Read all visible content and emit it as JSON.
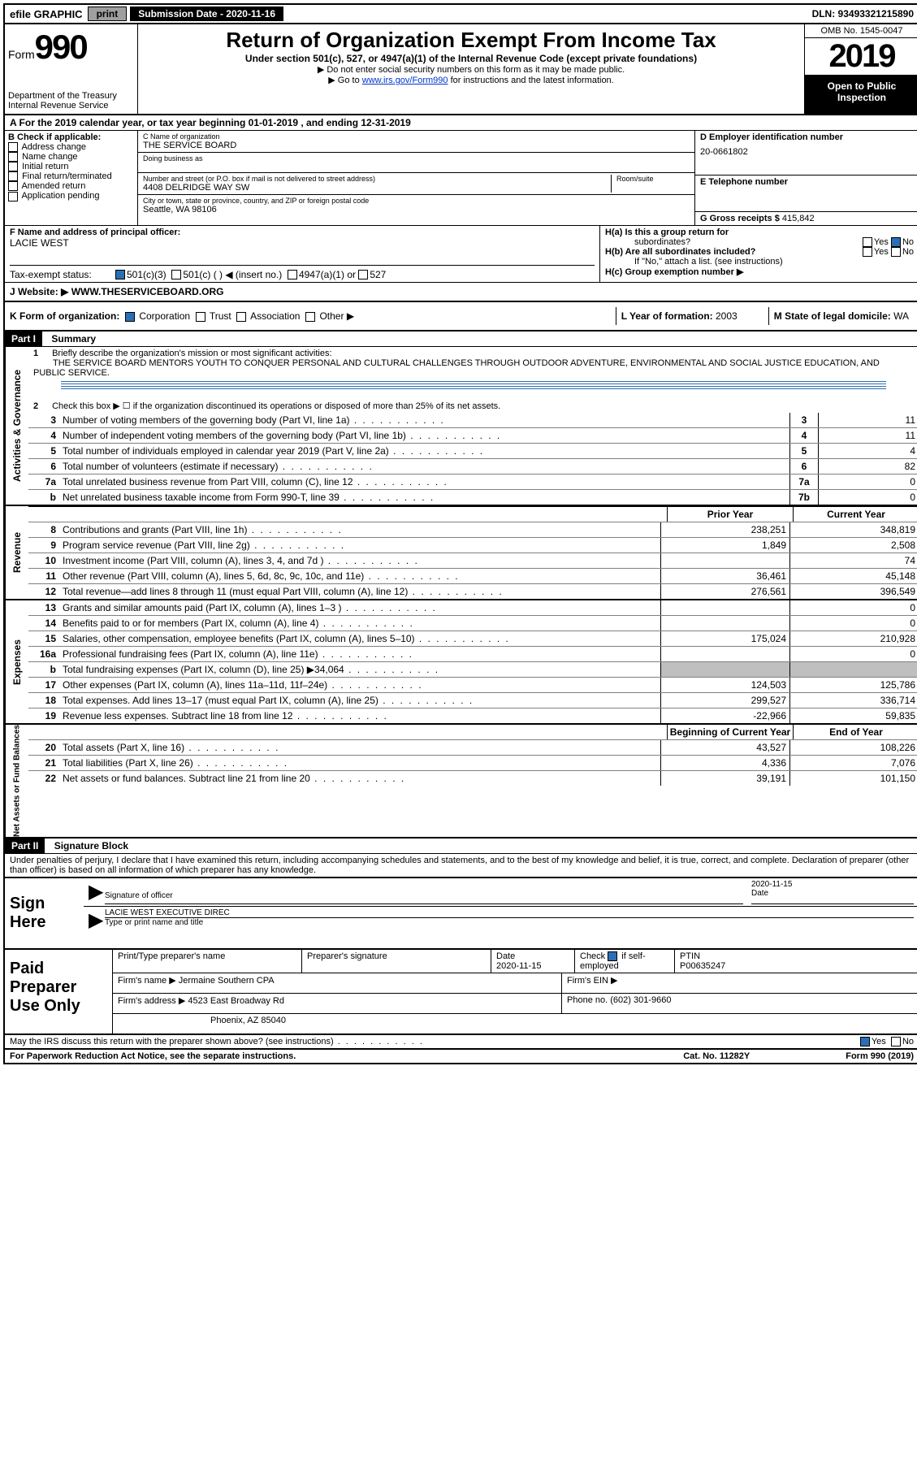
{
  "topbar": {
    "efile": "efile GRAPHIC",
    "print": "print",
    "submission": "Submission Date - 2020-11-16",
    "dln": "DLN: 93493321215890"
  },
  "header": {
    "form_label": "Form",
    "form_num": "990",
    "dept1": "Department of the Treasury",
    "dept2": "Internal Revenue Service",
    "title": "Return of Organization Exempt From Income Tax",
    "subtitle": "Under section 501(c), 527, or 4947(a)(1) of the Internal Revenue Code (except private foundations)",
    "note1": "▶ Do not enter social security numbers on this form as it may be made public.",
    "note2_pre": "▶ Go to ",
    "note2_link": "www.irs.gov/Form990",
    "note2_post": " for instructions and the latest information.",
    "omb": "OMB No. 1545-0047",
    "year": "2019",
    "open_public": "Open to Public Inspection"
  },
  "A": {
    "text": "A For the 2019 calendar year, or tax year beginning 01-01-2019    , and ending 12-31-2019"
  },
  "B": {
    "label": "B Check if applicable:",
    "items": [
      "Address change",
      "Name change",
      "Initial return",
      "Final return/terminated",
      "Amended return",
      "Application pending"
    ]
  },
  "C": {
    "name_label": "C Name of organization",
    "name": "THE SERVICE BOARD",
    "dba_label": "Doing business as",
    "addr_label": "Number and street (or P.O. box if mail is not delivered to street address)",
    "room_label": "Room/suite",
    "addr": "4408 DELRIDGE WAY SW",
    "city_label": "City or town, state or province, country, and ZIP or foreign postal code",
    "city": "Seattle, WA  98106"
  },
  "D": {
    "label": "D Employer identification number",
    "ein": "20-0661802"
  },
  "E": {
    "label": "E Telephone number"
  },
  "G": {
    "label": "G Gross receipts $",
    "val": "415,842"
  },
  "F": {
    "label": "F  Name and address of principal officer:",
    "name": "LACIE WEST"
  },
  "H": {
    "a_label": "H(a)  Is this a group return for",
    "a_sub": "subordinates?",
    "b_label": "H(b)  Are all subordinates included?",
    "b_note": "If \"No,\" attach a list. (see instructions)",
    "c_label": "H(c)  Group exemption number ▶",
    "yes": "Yes",
    "no": "No"
  },
  "I": {
    "label": "Tax-exempt status:",
    "opt1": "501(c)(3)",
    "opt2": "501(c) (   ) ◀ (insert no.)",
    "opt3": "4947(a)(1) or",
    "opt4": "527"
  },
  "J": {
    "label": "J    Website: ▶",
    "val": "WWW.THESERVICEBOARD.ORG"
  },
  "K": {
    "label": "K Form of organization:",
    "corp": "Corporation",
    "trust": "Trust",
    "assoc": "Association",
    "other": "Other ▶"
  },
  "L": {
    "label": "L Year of formation:",
    "val": "2003"
  },
  "M": {
    "label": "M State of legal domicile:",
    "val": "WA"
  },
  "partI": {
    "header": "Part I",
    "title": "Summary"
  },
  "line1": {
    "num": "1",
    "label": "Briefly describe the organization's mission or most significant activities:",
    "text": "THE SERVICE BOARD MENTORS YOUTH TO CONQUER PERSONAL AND CULTURAL CHALLENGES THROUGH OUTDOOR ADVENTURE, ENVIRONMENTAL AND SOCIAL JUSTICE EDUCATION, AND PUBLIC SERVICE."
  },
  "line2": {
    "num": "2",
    "label": "Check this box ▶ ☐ if the organization discontinued its operations or disposed of more than 25% of its net assets."
  },
  "sidebar": {
    "activities": "Activities & Governance",
    "revenue": "Revenue",
    "expenses": "Expenses",
    "netassets": "Net Assets or Fund Balances"
  },
  "cols": {
    "prior": "Prior Year",
    "current": "Current Year",
    "begin": "Beginning of Current Year",
    "end": "End of Year"
  },
  "lines_gov": [
    {
      "num": "3",
      "label": "Number of voting members of the governing body (Part VI, line 1a)",
      "box": "3",
      "v": "11"
    },
    {
      "num": "4",
      "label": "Number of independent voting members of the governing body (Part VI, line 1b)",
      "box": "4",
      "v": "11"
    },
    {
      "num": "5",
      "label": "Total number of individuals employed in calendar year 2019 (Part V, line 2a)",
      "box": "5",
      "v": "4"
    },
    {
      "num": "6",
      "label": "Total number of volunteers (estimate if necessary)",
      "box": "6",
      "v": "82"
    },
    {
      "num": "7a",
      "label": "Total unrelated business revenue from Part VIII, column (C), line 12",
      "box": "7a",
      "v": "0"
    },
    {
      "num": "b",
      "label": "Net unrelated business taxable income from Form 990-T, line 39",
      "box": "7b",
      "v": "0"
    }
  ],
  "lines_rev": [
    {
      "num": "8",
      "label": "Contributions and grants (Part VIII, line 1h)",
      "p": "238,251",
      "c": "348,819"
    },
    {
      "num": "9",
      "label": "Program service revenue (Part VIII, line 2g)",
      "p": "1,849",
      "c": "2,508"
    },
    {
      "num": "10",
      "label": "Investment income (Part VIII, column (A), lines 3, 4, and 7d )",
      "p": "",
      "c": "74"
    },
    {
      "num": "11",
      "label": "Other revenue (Part VIII, column (A), lines 5, 6d, 8c, 9c, 10c, and 11e)",
      "p": "36,461",
      "c": "45,148"
    },
    {
      "num": "12",
      "label": "Total revenue—add lines 8 through 11 (must equal Part VIII, column (A), line 12)",
      "p": "276,561",
      "c": "396,549"
    }
  ],
  "lines_exp": [
    {
      "num": "13",
      "label": "Grants and similar amounts paid (Part IX, column (A), lines 1–3 )",
      "p": "",
      "c": "0"
    },
    {
      "num": "14",
      "label": "Benefits paid to or for members (Part IX, column (A), line 4)",
      "p": "",
      "c": "0"
    },
    {
      "num": "15",
      "label": "Salaries, other compensation, employee benefits (Part IX, column (A), lines 5–10)",
      "p": "175,024",
      "c": "210,928"
    },
    {
      "num": "16a",
      "label": "Professional fundraising fees (Part IX, column (A), line 11e)",
      "p": "",
      "c": "0"
    },
    {
      "num": "b",
      "label": "Total fundraising expenses (Part IX, column (D), line 25) ▶34,064",
      "p": "grey",
      "c": "grey"
    },
    {
      "num": "17",
      "label": "Other expenses (Part IX, column (A), lines 11a–11d, 11f–24e)",
      "p": "124,503",
      "c": "125,786"
    },
    {
      "num": "18",
      "label": "Total expenses. Add lines 13–17 (must equal Part IX, column (A), line 25)",
      "p": "299,527",
      "c": "336,714"
    },
    {
      "num": "19",
      "label": "Revenue less expenses. Subtract line 18 from line 12",
      "p": "-22,966",
      "c": "59,835"
    }
  ],
  "lines_net": [
    {
      "num": "20",
      "label": "Total assets (Part X, line 16)",
      "p": "43,527",
      "c": "108,226"
    },
    {
      "num": "21",
      "label": "Total liabilities (Part X, line 26)",
      "p": "4,336",
      "c": "7,076"
    },
    {
      "num": "22",
      "label": "Net assets or fund balances. Subtract line 21 from line 20",
      "p": "39,191",
      "c": "101,150"
    }
  ],
  "partII": {
    "header": "Part II",
    "title": "Signature Block",
    "declaration": "Under penalties of perjury, I declare that I have examined this return, including accompanying schedules and statements, and to the best of my knowledge and belief, it is true, correct, and complete. Declaration of preparer (other than officer) is based on all information of which preparer has any knowledge."
  },
  "sign": {
    "here": "Sign Here",
    "sig_label": "Signature of officer",
    "date_label": "Date",
    "date": "2020-11-15",
    "name": "LACIE WEST EXECUTIVE DIREC",
    "type_label": "Type or print name and title"
  },
  "paid": {
    "label": "Paid Preparer Use Only",
    "h1": "Print/Type preparer's name",
    "h2": "Preparer's signature",
    "h3": "Date",
    "h3v": "2020-11-15",
    "h4": "Check ☑ if self-employed",
    "h5": "PTIN",
    "h5v": "P00635247",
    "firm_name_label": "Firm's name    ▶",
    "firm_name": "Jermaine Southern CPA",
    "firm_ein_label": "Firm's EIN ▶",
    "firm_addr_label": "Firm's address ▶",
    "firm_addr1": "4523 East Broadway Rd",
    "firm_addr2": "Phoenix, AZ  85040",
    "phone_label": "Phone no.",
    "phone": "(602) 301-9660"
  },
  "discuss": {
    "label": "May the IRS discuss this return with the preparer shown above? (see instructions)",
    "yes": "Yes",
    "no": "No"
  },
  "footer": {
    "left": "For Paperwork Reduction Act Notice, see the separate instructions.",
    "mid": "Cat. No. 11282Y",
    "right": "Form 990 (2019)"
  }
}
